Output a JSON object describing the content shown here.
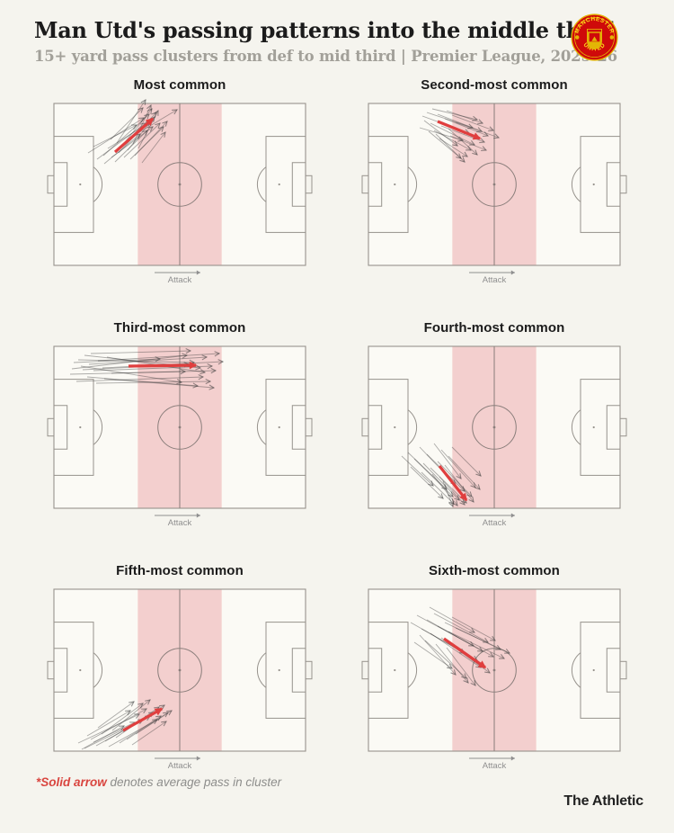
{
  "header": {
    "title": "Man Utd's passing patterns into the middle third",
    "subtitle": "15+ yard pass clusters from def to mid third | Premier League, 2025-26"
  },
  "crest": {
    "top_text": "MANCHESTER",
    "bottom_text": "UNITED"
  },
  "labels": {
    "attack": "Attack"
  },
  "footnote": {
    "highlight": "*Solid arrow",
    "rest": " denotes average pass in cluster"
  },
  "brand": "The Athletic",
  "colors": {
    "background": "#f5f4ee",
    "pitch_fill": "#fbfaf5",
    "pitch_line": "#97938d",
    "center_line": "#8a7e7b",
    "middle_third_band": "#f3cfce",
    "thin_arrow": "#3c3c3c",
    "mean_arrow_red": "#e03e3e",
    "attack_gray": "#8f8f8f"
  },
  "chart_data": {
    "type": "pass-cluster-pitch-map",
    "title": "Man Utd's passing patterns into the middle third",
    "subtitle": "15+ yard pass clusters from def to mid third | Premier League, 2025-26",
    "layout": "2x3 small multiples, attack direction left to right",
    "coords": {
      "pitch_width": 280,
      "pitch_height": 180,
      "origin": "top-left",
      "middle_third_x": [
        93.3,
        186.7
      ]
    },
    "panels": [
      {
        "title": "Most common",
        "mean_pass": [
          68,
          54,
          110,
          17
        ],
        "passes": [
          [
            38,
            55,
            100,
            16
          ],
          [
            48,
            62,
            102,
            22
          ],
          [
            55,
            58,
            106,
            12
          ],
          [
            60,
            50,
            108,
            20
          ],
          [
            64,
            60,
            110,
            26
          ],
          [
            68,
            65,
            104,
            30
          ],
          [
            72,
            55,
            114,
            10
          ],
          [
            75,
            48,
            109,
            6
          ],
          [
            78,
            60,
            118,
            22
          ],
          [
            82,
            52,
            112,
            15
          ],
          [
            85,
            62,
            122,
            26
          ],
          [
            88,
            45,
            108,
            2
          ],
          [
            90,
            58,
            126,
            20
          ],
          [
            94,
            50,
            116,
            8
          ],
          [
            98,
            66,
            124,
            32
          ],
          [
            85,
            38,
            137,
            7
          ],
          [
            70,
            44,
            102,
            -4
          ],
          [
            56,
            67,
            96,
            34
          ],
          [
            44,
            48,
            92,
            24
          ],
          [
            63,
            40,
            99,
            5
          ]
        ]
      },
      {
        "title": "Second-most common",
        "mean_pass": [
          77,
          20,
          124,
          39
        ],
        "passes": [
          [
            57,
            27,
            105,
            41
          ],
          [
            60,
            14,
            112,
            33
          ],
          [
            65,
            10,
            116,
            27
          ],
          [
            69,
            22,
            118,
            46
          ],
          [
            73,
            30,
            114,
            52
          ],
          [
            77,
            12,
            126,
            31
          ],
          [
            81,
            25,
            129,
            43
          ],
          [
            85,
            17,
            133,
            36
          ],
          [
            89,
            28,
            121,
            57
          ],
          [
            93,
            13,
            139,
            30
          ],
          [
            97,
            21,
            145,
            38
          ],
          [
            67,
            31,
            103,
            61
          ],
          [
            75,
            34,
            107,
            65
          ],
          [
            87,
            8,
            127,
            22
          ],
          [
            62,
            19,
            99,
            47
          ],
          [
            79,
            39,
            110,
            59
          ],
          [
            71,
            6,
            121,
            18
          ],
          [
            91,
            36,
            131,
            52
          ]
        ]
      },
      {
        "title": "Third-most common",
        "mean_pass": [
          83,
          22,
          158,
          21
        ],
        "passes": [
          [
            20,
            25,
            148,
            10
          ],
          [
            27,
            15,
            156,
            18
          ],
          [
            34,
            10,
            163,
            24
          ],
          [
            18,
            31,
            146,
            28
          ],
          [
            39,
            20,
            170,
            12
          ],
          [
            44,
            27,
            176,
            22
          ],
          [
            30,
            22,
            142,
            40
          ],
          [
            25,
            39,
            166,
            34
          ],
          [
            49,
            16,
            184,
            8
          ],
          [
            54,
            24,
            188,
            17
          ],
          [
            37,
            34,
            160,
            44
          ],
          [
            22,
            18,
            118,
            14
          ],
          [
            59,
            12,
            168,
            29
          ],
          [
            47,
            41,
            174,
            39
          ],
          [
            32,
            26,
            150,
            20
          ],
          [
            64,
            30,
            180,
            27
          ],
          [
            41,
            8,
            152,
            5
          ],
          [
            56,
            36,
            178,
            46
          ]
        ]
      },
      {
        "title": "Fourth-most common",
        "mean_pass": [
          79,
          133,
          109,
          171
        ],
        "passes": [
          [
            44,
            118,
            87,
            159
          ],
          [
            51,
            125,
            94,
            167
          ],
          [
            57,
            112,
            97,
            154
          ],
          [
            61,
            130,
            101,
            171
          ],
          [
            65,
            120,
            107,
            161
          ],
          [
            69,
            135,
            109,
            174
          ],
          [
            73,
            108,
            103,
            147
          ],
          [
            77,
            128,
            115,
            167
          ],
          [
            81,
            115,
            119,
            157
          ],
          [
            85,
            132,
            117,
            173
          ],
          [
            89,
            122,
            124,
            159
          ],
          [
            59,
            140,
            95,
            175
          ],
          [
            47,
            134,
            83,
            169
          ],
          [
            71,
            142,
            99,
            177
          ],
          [
            93,
            112,
            125,
            144
          ],
          [
            79,
            145,
            107,
            176
          ],
          [
            83,
            150,
            94,
            178
          ],
          [
            37,
            122,
            72,
            155
          ]
        ]
      },
      {
        "title": "Fifth-most common",
        "mean_pass": [
          77,
          157,
          120,
          133
        ],
        "passes": [
          [
            27,
            171,
            95,
            139
          ],
          [
            34,
            177,
            99,
            145
          ],
          [
            41,
            167,
            103,
            133
          ],
          [
            47,
            174,
            107,
            141
          ],
          [
            53,
            161,
            99,
            127
          ],
          [
            57,
            169,
            111,
            137
          ],
          [
            61,
            175,
            115,
            145
          ],
          [
            65,
            157,
            107,
            123
          ],
          [
            69,
            165,
            117,
            131
          ],
          [
            73,
            171,
            119,
            141
          ],
          [
            77,
            159,
            123,
            129
          ],
          [
            81,
            167,
            127,
            137
          ],
          [
            49,
            154,
            89,
            125
          ],
          [
            37,
            163,
            85,
            135
          ],
          [
            87,
            173,
            125,
            147
          ],
          [
            91,
            161,
            131,
            135
          ],
          [
            31,
            178,
            78,
            152
          ],
          [
            44,
            170,
            90,
            148
          ]
        ]
      },
      {
        "title": "Sixth-most common",
        "mean_pass": [
          84,
          55,
          130,
          87
        ],
        "passes": [
          [
            47,
            37,
            107,
            71
          ],
          [
            54,
            29,
            117,
            63
          ],
          [
            59,
            44,
            121,
            79
          ],
          [
            65,
            34,
            127,
            69
          ],
          [
            69,
            49,
            125,
            87
          ],
          [
            73,
            27,
            133,
            59
          ],
          [
            77,
            41,
            139,
            75
          ],
          [
            81,
            54,
            135,
            93
          ],
          [
            85,
            37,
            147,
            67
          ],
          [
            89,
            47,
            151,
            77
          ],
          [
            63,
            57,
            109,
            99
          ],
          [
            57,
            51,
            97,
            95
          ],
          [
            93,
            31,
            141,
            57
          ],
          [
            97,
            43,
            157,
            71
          ],
          [
            75,
            61,
            111,
            104
          ],
          [
            87,
            65,
            119,
            107
          ],
          [
            51,
            59,
            93,
            88
          ],
          [
            68,
            20,
            118,
            48
          ]
        ]
      }
    ]
  }
}
